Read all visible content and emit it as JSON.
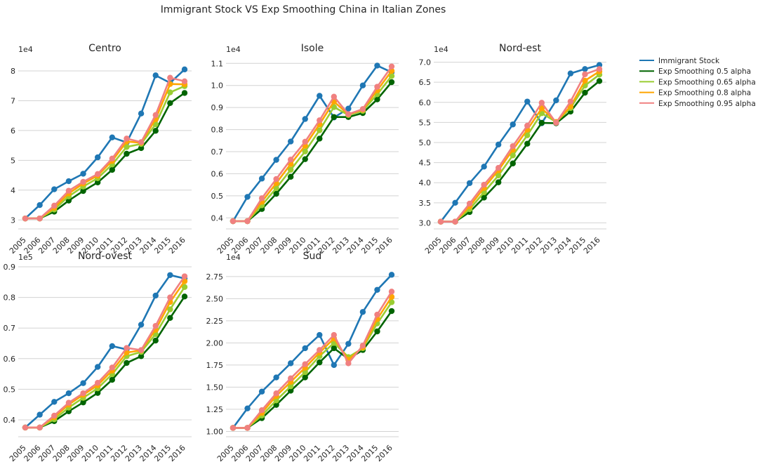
{
  "figure": {
    "title": "Immigrant Stock VS Exp Smoothing China in Italian Zones"
  },
  "legend": {
    "placement": "right",
    "entries": [
      "Immigrant Stock",
      "Exp Smoothing 0.5 alpha",
      "Exp Smoothing 0.65 alpha",
      "Exp Smoothing 0.8 alpha",
      "Exp Smoothing 0.95 alpha"
    ]
  },
  "colors": {
    "Immigrant Stock": "#1f77b4",
    "Exp Smoothing 0.5 alpha": "#006400",
    "Exp Smoothing 0.65 alpha": "#9acd32",
    "Exp Smoothing 0.8 alpha": "#ffa500",
    "Exp Smoothing 0.95 alpha": "#f08080",
    "grid": "#d3d3d3",
    "text": "#262626"
  },
  "chart_data": [
    {
      "type": "line",
      "title": "Centro",
      "multiplier": "1e4",
      "x": [
        "2005",
        "2006",
        "2007",
        "2008",
        "2009",
        "2010",
        "2011",
        "2012",
        "2013",
        "2014",
        "2015",
        "2016"
      ],
      "ylim": [
        2.7,
        8.4
      ],
      "yticks": [
        3,
        4,
        5,
        6,
        7,
        8
      ],
      "ytick_labels": [
        "3",
        "4",
        "5",
        "6",
        "7",
        "8"
      ],
      "grid": true,
      "series": [
        {
          "name": "Immigrant Stock",
          "values": [
            3.05,
            3.5,
            4.03,
            4.3,
            4.55,
            5.1,
            5.77,
            5.6,
            6.57,
            7.85,
            7.6,
            8.05
          ]
        },
        {
          "name": "Exp Smoothing 0.5 alpha",
          "values": [
            3.05,
            3.05,
            3.28,
            3.65,
            3.97,
            4.26,
            4.68,
            5.22,
            5.41,
            5.99,
            6.92,
            7.26
          ]
        },
        {
          "name": "Exp Smoothing 0.65 alpha",
          "values": [
            3.05,
            3.05,
            3.35,
            3.79,
            4.12,
            4.4,
            4.86,
            5.45,
            5.55,
            6.21,
            7.28,
            7.49
          ]
        },
        {
          "name": "Exp Smoothing 0.8 alpha",
          "values": [
            3.05,
            3.05,
            3.41,
            3.89,
            4.22,
            4.49,
            4.98,
            5.63,
            5.59,
            6.38,
            7.56,
            7.55
          ]
        },
        {
          "name": "Exp Smoothing 0.95 alpha",
          "values": [
            3.05,
            3.05,
            3.48,
            3.98,
            4.28,
            4.54,
            5.06,
            5.73,
            5.61,
            6.52,
            7.77,
            7.65
          ]
        }
      ]
    },
    {
      "type": "line",
      "title": "Isole",
      "multiplier": "1e4",
      "x": [
        "2005",
        "2006",
        "2007",
        "2008",
        "2009",
        "2010",
        "2011",
        "2012",
        "2013",
        "2014",
        "2015",
        "2016"
      ],
      "ylim": [
        0.35,
        1.12
      ],
      "yticks": [
        0.4,
        0.5,
        0.6,
        0.7,
        0.8,
        0.9,
        1.0,
        1.1
      ],
      "ytick_labels": [
        "0.4",
        "0.5",
        "0.6",
        "0.7",
        "0.8",
        "0.9",
        "1.0",
        "1.1"
      ],
      "grid": true,
      "series": [
        {
          "name": "Immigrant Stock",
          "values": [
            0.385,
            0.495,
            0.578,
            0.663,
            0.746,
            0.848,
            0.953,
            0.855,
            0.895,
            1.0,
            1.09,
            1.06
          ]
        },
        {
          "name": "Exp Smoothing 0.5 alpha",
          "values": [
            0.385,
            0.385,
            0.44,
            0.509,
            0.586,
            0.666,
            0.759,
            0.857,
            0.857,
            0.875,
            0.937,
            1.015
          ]
        },
        {
          "name": "Exp Smoothing 0.65 alpha",
          "values": [
            0.385,
            0.385,
            0.457,
            0.535,
            0.618,
            0.701,
            0.797,
            0.902,
            0.866,
            0.885,
            0.96,
            1.043
          ]
        },
        {
          "name": "Exp Smoothing 0.8 alpha",
          "values": [
            0.385,
            0.385,
            0.473,
            0.557,
            0.644,
            0.727,
            0.824,
            0.927,
            0.869,
            0.89,
            0.978,
            1.066
          ]
        },
        {
          "name": "Exp Smoothing 0.95 alpha",
          "values": [
            0.385,
            0.385,
            0.489,
            0.576,
            0.664,
            0.745,
            0.842,
            0.949,
            0.87,
            0.893,
            0.994,
            1.086
          ]
        }
      ]
    },
    {
      "type": "line",
      "title": "Nord-est",
      "multiplier": "1e4",
      "x": [
        "2005",
        "2006",
        "2007",
        "2008",
        "2009",
        "2010",
        "2011",
        "2012",
        "2013",
        "2014",
        "2015",
        "2016"
      ],
      "ylim": [
        2.85,
        7.08
      ],
      "yticks": [
        3.0,
        3.5,
        4.0,
        4.5,
        5.0,
        5.5,
        6.0,
        6.5,
        7.0
      ],
      "ytick_labels": [
        "3.0",
        "3.5",
        "4.0",
        "4.5",
        "5.0",
        "5.5",
        "6.0",
        "6.5",
        "7.0"
      ],
      "grid": true,
      "series": [
        {
          "name": "Immigrant Stock",
          "values": [
            3.03,
            3.5,
            3.99,
            4.4,
            4.95,
            5.45,
            6.02,
            5.48,
            6.05,
            6.72,
            6.83,
            6.93
          ]
        },
        {
          "name": "Exp Smoothing 0.5 alpha",
          "values": [
            3.03,
            3.03,
            3.27,
            3.63,
            4.01,
            4.48,
            4.97,
            5.49,
            5.48,
            5.77,
            6.24,
            6.53
          ]
        },
        {
          "name": "Exp Smoothing 0.65 alpha",
          "values": [
            3.03,
            3.03,
            3.34,
            3.76,
            4.18,
            4.68,
            5.18,
            5.73,
            5.51,
            5.86,
            6.42,
            6.69
          ]
        },
        {
          "name": "Exp Smoothing 0.8 alpha",
          "values": [
            3.03,
            3.03,
            3.41,
            3.87,
            4.31,
            4.82,
            5.32,
            5.85,
            5.51,
            5.9,
            6.54,
            6.77
          ]
        },
        {
          "name": "Exp Smoothing 0.95 alpha",
          "values": [
            3.03,
            3.03,
            3.48,
            3.95,
            4.37,
            4.91,
            5.42,
            5.99,
            5.49,
            6.02,
            6.7,
            6.83
          ]
        }
      ]
    },
    {
      "type": "line",
      "title": "Nord-ovest",
      "multiplier": "1e5",
      "x": [
        "2005",
        "2006",
        "2007",
        "2008",
        "2009",
        "2010",
        "2011",
        "2012",
        "2013",
        "2014",
        "2015",
        "2016"
      ],
      "ylim": [
        0.345,
        0.9
      ],
      "yticks": [
        0.4,
        0.5,
        0.6,
        0.7,
        0.8,
        0.9
      ],
      "ytick_labels": [
        "0.4",
        "0.5",
        "0.6",
        "0.7",
        "0.8",
        "0.9"
      ],
      "grid": true,
      "series": [
        {
          "name": "Immigrant Stock",
          "values": [
            0.375,
            0.417,
            0.459,
            0.487,
            0.52,
            0.573,
            0.641,
            0.63,
            0.711,
            0.806,
            0.873,
            0.862
          ]
        },
        {
          "name": "Exp Smoothing 0.5 alpha",
          "values": [
            0.375,
            0.375,
            0.396,
            0.428,
            0.457,
            0.488,
            0.531,
            0.586,
            0.608,
            0.659,
            0.733,
            0.803
          ]
        },
        {
          "name": "Exp Smoothing 0.65 alpha",
          "values": [
            0.375,
            0.375,
            0.402,
            0.44,
            0.472,
            0.503,
            0.549,
            0.608,
            0.622,
            0.68,
            0.761,
            0.834
          ]
        },
        {
          "name": "Exp Smoothing 0.8 alpha",
          "values": [
            0.375,
            0.375,
            0.409,
            0.45,
            0.482,
            0.513,
            0.561,
            0.62,
            0.627,
            0.694,
            0.785,
            0.853
          ]
        },
        {
          "name": "Exp Smoothing 0.95 alpha",
          "values": [
            0.375,
            0.375,
            0.414,
            0.456,
            0.487,
            0.521,
            0.571,
            0.635,
            0.628,
            0.707,
            0.8,
            0.869
          ]
        }
      ]
    },
    {
      "type": "line",
      "title": "Sud",
      "multiplier": "1e4",
      "x": [
        "2005",
        "2006",
        "2007",
        "2008",
        "2009",
        "2010",
        "2011",
        "2012",
        "2013",
        "2014",
        "2015",
        "2016"
      ],
      "ylim": [
        0.94,
        2.86
      ],
      "yticks": [
        1.0,
        1.25,
        1.5,
        1.75,
        2.0,
        2.25,
        2.5,
        2.75
      ],
      "ytick_labels": [
        "1.00",
        "1.25",
        "1.50",
        "1.75",
        "2.00",
        "2.25",
        "2.50",
        "2.75"
      ],
      "grid": true,
      "series": [
        {
          "name": "Immigrant Stock",
          "values": [
            1.04,
            1.26,
            1.45,
            1.61,
            1.77,
            1.94,
            2.09,
            1.75,
            1.99,
            2.35,
            2.6,
            2.77
          ]
        },
        {
          "name": "Exp Smoothing 0.5 alpha",
          "values": [
            1.04,
            1.04,
            1.15,
            1.3,
            1.46,
            1.61,
            1.78,
            1.94,
            1.82,
            1.92,
            2.13,
            2.36
          ]
        },
        {
          "name": "Exp Smoothing 0.65 alpha",
          "values": [
            1.04,
            1.04,
            1.18,
            1.35,
            1.51,
            1.67,
            1.85,
            2.0,
            1.84,
            1.94,
            2.22,
            2.46
          ]
        },
        {
          "name": "Exp Smoothing 0.8 alpha",
          "values": [
            1.04,
            1.04,
            1.21,
            1.4,
            1.56,
            1.72,
            1.89,
            2.05,
            1.81,
            1.95,
            2.27,
            2.52
          ]
        },
        {
          "name": "Exp Smoothing 0.95 alpha",
          "values": [
            1.04,
            1.04,
            1.24,
            1.43,
            1.6,
            1.76,
            1.92,
            2.09,
            1.77,
            1.97,
            2.32,
            2.58
          ]
        }
      ]
    }
  ]
}
